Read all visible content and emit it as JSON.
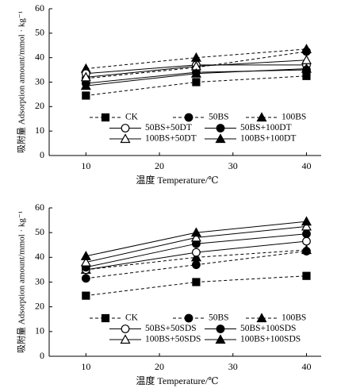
{
  "chart_data": [
    {
      "type": "line",
      "x_label": "温度 Temperature/℃",
      "y_label": "吸附量 Adsorption amount/mmol · kg⁻¹",
      "x": [
        10,
        25,
        40
      ],
      "xlim": [
        5,
        42
      ],
      "xticks": [
        10,
        20,
        30,
        40
      ],
      "ylim": [
        0,
        60
      ],
      "yticks": [
        0,
        10,
        20,
        30,
        40,
        50,
        60
      ],
      "legend": "lower-center",
      "series": [
        {
          "name": "CK",
          "color": "#000000",
          "marker": "square",
          "filled": true,
          "dashed": true,
          "values": [
            24.5,
            30,
            32.5
          ]
        },
        {
          "name": "50BS",
          "color": "#000000",
          "marker": "circle",
          "filled": true,
          "dashed": true,
          "values": [
            31.5,
            36,
            42.5
          ]
        },
        {
          "name": "100BS",
          "color": "#000000",
          "marker": "triangle",
          "filled": true,
          "dashed": true,
          "values": [
            35.5,
            40,
            43.5
          ]
        },
        {
          "name": "50BS+50DT",
          "color": "#000000",
          "marker": "circle",
          "filled": false,
          "dashed": false,
          "values": [
            33.5,
            37,
            37
          ]
        },
        {
          "name": "50BS+100DT",
          "color": "#000000",
          "marker": "circle",
          "filled": true,
          "dashed": false,
          "values": [
            29.5,
            34,
            35
          ]
        },
        {
          "name": "100BS+50DT",
          "color": "#000000",
          "marker": "triangle",
          "filled": false,
          "dashed": false,
          "values": [
            32,
            36.5,
            39
          ]
        },
        {
          "name": "100BS+100DT",
          "color": "#000000",
          "marker": "triangle",
          "filled": true,
          "dashed": false,
          "values": [
            28.5,
            33.5,
            35.5
          ]
        }
      ]
    },
    {
      "type": "line",
      "x_label": "温度 Temperature/℃",
      "y_label": "吸附量 Adsorption amount/mmol · kg⁻¹",
      "x": [
        10,
        25,
        40
      ],
      "xlim": [
        5,
        42
      ],
      "xticks": [
        10,
        20,
        30,
        40
      ],
      "ylim": [
        0,
        60
      ],
      "yticks": [
        0,
        10,
        20,
        30,
        40,
        50,
        60
      ],
      "legend": "lower-center",
      "series": [
        {
          "name": "CK",
          "color": "#000000",
          "marker": "square",
          "filled": true,
          "dashed": true,
          "values": [
            24.5,
            30,
            32.5
          ]
        },
        {
          "name": "50BS",
          "color": "#000000",
          "marker": "circle",
          "filled": true,
          "dashed": true,
          "values": [
            31.5,
            37,
            42.5
          ]
        },
        {
          "name": "100BS",
          "color": "#000000",
          "marker": "triangle",
          "filled": true,
          "dashed": true,
          "values": [
            35,
            40,
            43
          ]
        },
        {
          "name": "50BS+50SDS",
          "color": "#000000",
          "marker": "circle",
          "filled": false,
          "dashed": false,
          "values": [
            35,
            42,
            46.5
          ]
        },
        {
          "name": "50BS+100SDS",
          "color": "#000000",
          "marker": "circle",
          "filled": true,
          "dashed": false,
          "values": [
            36,
            45.5,
            49.5
          ]
        },
        {
          "name": "100BS+50SDS",
          "color": "#000000",
          "marker": "triangle",
          "filled": false,
          "dashed": false,
          "values": [
            38,
            48,
            52.5
          ]
        },
        {
          "name": "100BS+100SDS",
          "color": "#000000",
          "marker": "triangle",
          "filled": true,
          "dashed": false,
          "values": [
            40.5,
            50,
            54.5
          ]
        }
      ]
    }
  ]
}
